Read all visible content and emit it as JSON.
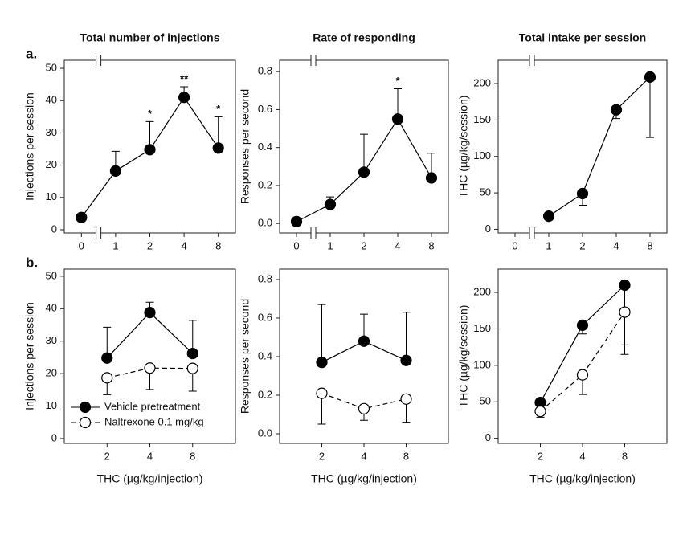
{
  "panel_labels": [
    "a.",
    "b."
  ],
  "chart_data": [
    {
      "type": "line",
      "title": "Total number of injections",
      "y_label": "Injections per session",
      "categories": [
        "0",
        "1",
        "2",
        "4",
        "8"
      ],
      "axis_break": true,
      "ylim": [
        -1,
        52.5
      ],
      "yticks": [
        0,
        10,
        20,
        30,
        40,
        50
      ],
      "series": [
        {
          "color": "#000000",
          "marker_fill": "#000000",
          "dashed": false,
          "error_direction": "up",
          "values": [
            3.8,
            18.2,
            24.8,
            41.0,
            25.3
          ],
          "errors": [
            0,
            6.1,
            8.7,
            3.3,
            9.7
          ],
          "significance": [
            null,
            null,
            "*",
            "**",
            "*"
          ]
        }
      ]
    },
    {
      "type": "line",
      "title": "Rate of responding",
      "y_label": "Responses per second",
      "categories": [
        "0",
        "1",
        "2",
        "4",
        "8"
      ],
      "axis_break": true,
      "ylim": [
        -0.05,
        0.86
      ],
      "yticks": [
        {
          "value": 0,
          "label": "0.0"
        },
        0.2,
        0.4,
        0.6,
        0.8
      ],
      "series": [
        {
          "color": "#000000",
          "marker_fill": "#000000",
          "dashed": false,
          "error_direction": "up",
          "values": [
            0.01,
            0.1,
            0.27,
            0.55,
            0.24
          ],
          "errors": [
            0,
            0.04,
            0.2,
            0.16,
            0.13
          ],
          "significance": [
            null,
            null,
            null,
            "*",
            null
          ]
        }
      ]
    },
    {
      "type": "line",
      "title": "Total intake per session",
      "y_label": "THC (µg/kg/session)",
      "categories": [
        "0",
        "1",
        "2",
        "4",
        "8"
      ],
      "axis_break": true,
      "ylim": [
        -5,
        232
      ],
      "yticks": [
        0,
        50,
        100,
        150,
        200
      ],
      "series": [
        {
          "color": "#000000",
          "marker_fill": "#000000",
          "dashed": false,
          "error_direction": "down",
          "values": [
            null,
            18,
            49,
            164,
            209
          ],
          "errors": [
            null,
            3,
            16,
            12,
            83
          ]
        }
      ]
    },
    {
      "type": "line",
      "y_label": "Injections per session",
      "x_label": "THC (µg/kg/injection)",
      "categories": [
        "2",
        "4",
        "8"
      ],
      "axis_break": false,
      "legend": "lower-left",
      "ylim": [
        -1.5,
        52.2
      ],
      "yticks": [
        0,
        10,
        20,
        30,
        40,
        50
      ],
      "series": [
        {
          "name": "Vehicle pretreatment",
          "color": "#000000",
          "marker_fill": "#000000",
          "dashed": false,
          "error_direction": "up",
          "values": [
            24.8,
            38.8,
            26.2
          ],
          "errors": [
            9.5,
            3.2,
            10.2
          ]
        },
        {
          "name": "Naltrexone 0.1 mg/kg",
          "color": "#000000",
          "marker_fill": "#ffffff",
          "dashed": true,
          "error_direction": "down",
          "values": [
            18.7,
            21.7,
            21.6
          ],
          "errors": [
            5.2,
            6.6,
            7.0
          ]
        }
      ]
    },
    {
      "type": "line",
      "y_label": "Responses per second",
      "x_label": "THC (µg/kg/injection)",
      "categories": [
        "2",
        "4",
        "8"
      ],
      "axis_break": false,
      "ylim": [
        -0.05,
        0.854
      ],
      "yticks": [
        {
          "value": 0,
          "label": "0.0"
        },
        0.2,
        0.4,
        0.6,
        0.8
      ],
      "series": [
        {
          "color": "#000000",
          "marker_fill": "#000000",
          "dashed": false,
          "error_direction": "up",
          "values": [
            0.37,
            0.48,
            0.38
          ],
          "errors": [
            0.3,
            0.14,
            0.25
          ]
        },
        {
          "color": "#000000",
          "marker_fill": "#ffffff",
          "dashed": true,
          "error_direction": "down",
          "values": [
            0.21,
            0.13,
            0.18
          ],
          "errors": [
            0.16,
            0.06,
            0.12
          ]
        }
      ]
    },
    {
      "type": "line",
      "y_label": "THC (µg/kg/session)",
      "x_label": "THC (µg/kg/injection)",
      "categories": [
        "2",
        "4",
        "8"
      ],
      "axis_break": false,
      "ylim": [
        -7,
        232
      ],
      "yticks": [
        0,
        50,
        100,
        150,
        200
      ],
      "series": [
        {
          "color": "#000000",
          "marker_fill": "#000000",
          "dashed": false,
          "error_direction": "down",
          "values": [
            49,
            155,
            210
          ],
          "errors": [
            0,
            12,
            82
          ]
        },
        {
          "color": "#000000",
          "marker_fill": "#ffffff",
          "dashed": true,
          "error_direction": "down",
          "values": [
            37,
            87,
            173
          ],
          "errors": [
            8,
            27,
            58
          ]
        }
      ]
    }
  ]
}
